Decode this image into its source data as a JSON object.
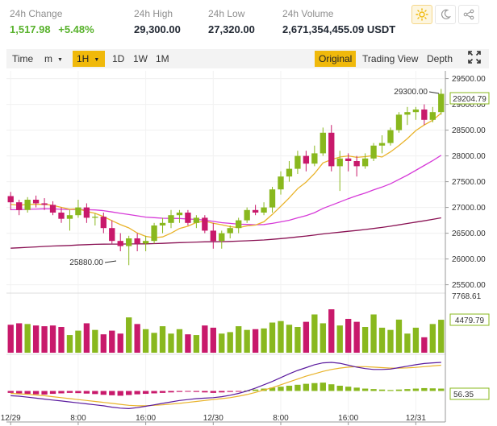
{
  "stats": [
    {
      "label": "24h Change",
      "value": "1,517.98",
      "value2": "+5.48%"
    },
    {
      "label": "24h High",
      "value": "29,300.00"
    },
    {
      "label": "24h Low",
      "value": "27,320.00"
    },
    {
      "label": "24h Volume",
      "value": "2,671,354,455.09 USDT"
    }
  ],
  "theme_icons": [
    "sun-icon",
    "moon-icon",
    "share-icon"
  ],
  "toolbar": {
    "time": "Time",
    "minute": "m",
    "hour": "1H",
    "day": "1D",
    "week": "1W",
    "month": "1M",
    "original": "Original",
    "tradingview": "Trading View",
    "depth": "Depth",
    "fullscreen_icon": "expand-icon"
  },
  "colors": {
    "up": "#89b81e",
    "down": "#c8196b",
    "accent": "#f0b90b",
    "ma7": "#e9b32a",
    "ma25": "#d63ad8",
    "ma99": "#8a1254"
  },
  "chart_data": {
    "type": "candlestick",
    "price_axis": {
      "ticks": [
        "29500.00",
        "29000.00",
        "28500.00",
        "28000.00",
        "27500.00",
        "27000.00",
        "26500.00",
        "26000.00",
        "25500.00"
      ],
      "min": 25400,
      "max": 29650
    },
    "last_price_label": "29204.79",
    "high_marker": "29300.00",
    "low_marker": "25880.00",
    "time_axis": [
      "12/29",
      "8:00",
      "16:00",
      "12/30",
      "8:00",
      "16:00",
      "12/31"
    ],
    "candles": [
      {
        "o": 27220,
        "h": 27300,
        "l": 26950,
        "c": 27100
      },
      {
        "o": 27100,
        "h": 27150,
        "l": 26850,
        "c": 26950
      },
      {
        "o": 26950,
        "h": 27200,
        "l": 26900,
        "c": 27150
      },
      {
        "o": 27150,
        "h": 27230,
        "l": 27000,
        "c": 27080
      },
      {
        "o": 27080,
        "h": 27180,
        "l": 26950,
        "c": 27050
      },
      {
        "o": 27050,
        "h": 27120,
        "l": 26850,
        "c": 26900
      },
      {
        "o": 26900,
        "h": 27000,
        "l": 26700,
        "c": 26780
      },
      {
        "o": 26780,
        "h": 26950,
        "l": 26550,
        "c": 26850
      },
      {
        "o": 26850,
        "h": 27150,
        "l": 26800,
        "c": 27000
      },
      {
        "o": 27000,
        "h": 27080,
        "l": 26700,
        "c": 26800
      },
      {
        "o": 26800,
        "h": 26880,
        "l": 26650,
        "c": 26820
      },
      {
        "o": 26820,
        "h": 26900,
        "l": 26500,
        "c": 26600
      },
      {
        "o": 26600,
        "h": 26750,
        "l": 26300,
        "c": 26350
      },
      {
        "o": 26350,
        "h": 26500,
        "l": 26150,
        "c": 26250
      },
      {
        "o": 26250,
        "h": 26450,
        "l": 25880,
        "c": 26400
      },
      {
        "o": 26400,
        "h": 26500,
        "l": 26150,
        "c": 26300
      },
      {
        "o": 26300,
        "h": 26450,
        "l": 26150,
        "c": 26350
      },
      {
        "o": 26350,
        "h": 26700,
        "l": 26300,
        "c": 26650
      },
      {
        "o": 26650,
        "h": 26800,
        "l": 26500,
        "c": 26700
      },
      {
        "o": 26700,
        "h": 26950,
        "l": 26600,
        "c": 26850
      },
      {
        "o": 26850,
        "h": 26950,
        "l": 26700,
        "c": 26900
      },
      {
        "o": 26900,
        "h": 26950,
        "l": 26650,
        "c": 26700
      },
      {
        "o": 26700,
        "h": 26850,
        "l": 26600,
        "c": 26800
      },
      {
        "o": 26800,
        "h": 26850,
        "l": 26500,
        "c": 26550
      },
      {
        "o": 26550,
        "h": 26700,
        "l": 26200,
        "c": 26350
      },
      {
        "o": 26350,
        "h": 26550,
        "l": 26200,
        "c": 26500
      },
      {
        "o": 26500,
        "h": 26650,
        "l": 26400,
        "c": 26600
      },
      {
        "o": 26600,
        "h": 26800,
        "l": 26500,
        "c": 26750
      },
      {
        "o": 26750,
        "h": 27000,
        "l": 26700,
        "c": 26950
      },
      {
        "o": 26950,
        "h": 27050,
        "l": 26850,
        "c": 26900
      },
      {
        "o": 26900,
        "h": 27100,
        "l": 26850,
        "c": 27000
      },
      {
        "o": 27000,
        "h": 27400,
        "l": 26900,
        "c": 27350
      },
      {
        "o": 27350,
        "h": 27700,
        "l": 27250,
        "c": 27600
      },
      {
        "o": 27600,
        "h": 27900,
        "l": 27500,
        "c": 27750
      },
      {
        "o": 27750,
        "h": 28100,
        "l": 27650,
        "c": 28000
      },
      {
        "o": 28000,
        "h": 28100,
        "l": 27700,
        "c": 27850
      },
      {
        "o": 27850,
        "h": 28200,
        "l": 27800,
        "c": 28050
      },
      {
        "o": 28050,
        "h": 28550,
        "l": 28000,
        "c": 28450
      },
      {
        "o": 28450,
        "h": 28600,
        "l": 27700,
        "c": 27800
      },
      {
        "o": 27800,
        "h": 28100,
        "l": 27320,
        "c": 27950
      },
      {
        "o": 27950,
        "h": 28050,
        "l": 27700,
        "c": 27900
      },
      {
        "o": 27900,
        "h": 28000,
        "l": 27600,
        "c": 27800
      },
      {
        "o": 27800,
        "h": 28050,
        "l": 27750,
        "c": 27950
      },
      {
        "o": 27950,
        "h": 28250,
        "l": 27900,
        "c": 28200
      },
      {
        "o": 28200,
        "h": 28400,
        "l": 28050,
        "c": 28250
      },
      {
        "o": 28250,
        "h": 28550,
        "l": 28200,
        "c": 28500
      },
      {
        "o": 28500,
        "h": 28850,
        "l": 28450,
        "c": 28800
      },
      {
        "o": 28800,
        "h": 28950,
        "l": 28600,
        "c": 28850
      },
      {
        "o": 28850,
        "h": 28950,
        "l": 28700,
        "c": 28900
      },
      {
        "o": 28900,
        "h": 29000,
        "l": 28600,
        "c": 28700
      },
      {
        "o": 28700,
        "h": 28950,
        "l": 28650,
        "c": 28850
      },
      {
        "o": 28850,
        "h": 29300,
        "l": 28800,
        "c": 29205
      }
    ],
    "volume_axis": {
      "max_label": "7768.61",
      "last_label": "4479.79",
      "max": 7768.61
    },
    "volumes": [
      3800,
      4000,
      3900,
      3700,
      3600,
      3700,
      3500,
      2400,
      3000,
      4000,
      3100,
      2500,
      3000,
      2600,
      4800,
      3900,
      3200,
      2700,
      3600,
      2600,
      3200,
      2500,
      2400,
      3700,
      3400,
      2600,
      2800,
      3600,
      3100,
      3200,
      3300,
      4100,
      4300,
      3800,
      3500,
      4200,
      5200,
      4000,
      5900,
      3700,
      4600,
      4200,
      3500,
      5200,
      3400,
      3100,
      4500,
      2600,
      3400,
      2100,
      3900,
      4480
    ],
    "macd_label": "56.35",
    "macd_hist": [
      -8,
      -10,
      -12,
      -14,
      -15,
      -12,
      -10,
      -8,
      -9,
      -11,
      -13,
      -16,
      -18,
      -20,
      -17,
      -14,
      -12,
      -10,
      -8,
      -6,
      -4,
      -3,
      -4,
      -6,
      -8,
      -6,
      -4,
      -2,
      2,
      6,
      10,
      14,
      18,
      22,
      26,
      30,
      33,
      35,
      28,
      22,
      18,
      14,
      10,
      8,
      6,
      4,
      6,
      8,
      10,
      12,
      11,
      10
    ],
    "macd_line": [
      -20,
      -22,
      -26,
      -30,
      -34,
      -38,
      -42,
      -46,
      -50,
      -54,
      -58,
      -62,
      -68,
      -72,
      -74,
      -70,
      -64,
      -58,
      -52,
      -46,
      -40,
      -36,
      -32,
      -30,
      -28,
      -24,
      -18,
      -10,
      0,
      12,
      26,
      40,
      56,
      72,
      86,
      98,
      110,
      118,
      120,
      116,
      108,
      100,
      94,
      90,
      90,
      92,
      98,
      104,
      110,
      115,
      118,
      120
    ],
    "signal_line": [
      -10,
      -12,
      -14,
      -17,
      -20,
      -24,
      -28,
      -32,
      -36,
      -40,
      -44,
      -48,
      -52,
      -56,
      -60,
      -62,
      -62,
      -60,
      -58,
      -55,
      -52,
      -48,
      -44,
      -40,
      -36,
      -32,
      -28,
      -22,
      -15,
      -6,
      4,
      14,
      26,
      38,
      50,
      62,
      72,
      82,
      90,
      96,
      100,
      102,
      102,
      100,
      98,
      96,
      96,
      97,
      99,
      102,
      105,
      108
    ]
  }
}
